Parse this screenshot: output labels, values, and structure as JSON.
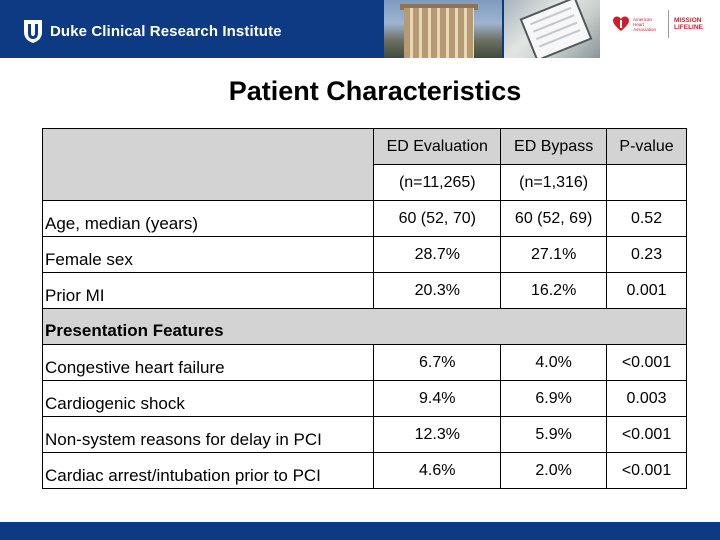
{
  "header": {
    "org_name": "Duke Clinical Research Institute",
    "partner_name": "American Heart Association",
    "partner_program": "MISSION LIFELINE",
    "brand_color": "#0e3a84",
    "partner_color": "#cc1f2d"
  },
  "title": "Patient Characteristics",
  "table": {
    "columns": [
      "",
      "ED Evaluation",
      "ED Bypass",
      "P-value"
    ],
    "n_row": [
      "",
      "(n=11,265)",
      "(n=1,316)",
      ""
    ],
    "rows": [
      {
        "label": "Age, median (years)",
        "ed_evaluation": "60 (52, 70)",
        "ed_bypass": "60 (52, 69)",
        "p_value": "0.52"
      },
      {
        "label": "Female sex",
        "ed_evaluation": "28.7%",
        "ed_bypass": "27.1%",
        "p_value": "0.23"
      },
      {
        "label": "Prior MI",
        "ed_evaluation": "20.3%",
        "ed_bypass": "16.2%",
        "p_value": "0.001"
      }
    ],
    "section_label": "Presentation Features",
    "section_rows": [
      {
        "label": "Congestive heart failure",
        "ed_evaluation": "6.7%",
        "ed_bypass": "4.0%",
        "p_value": "<0.001"
      },
      {
        "label": "Cardiogenic shock",
        "ed_evaluation": "9.4%",
        "ed_bypass": "6.9%",
        "p_value": "0.003"
      },
      {
        "label": "Non-system reasons for delay in PCI",
        "ed_evaluation": "12.3%",
        "ed_bypass": "5.9%",
        "p_value": "<0.001"
      },
      {
        "label": "Cardiac arrest/intubation prior to PCI",
        "ed_evaluation": "4.6%",
        "ed_bypass": "2.0%",
        "p_value": "<0.001"
      }
    ]
  }
}
